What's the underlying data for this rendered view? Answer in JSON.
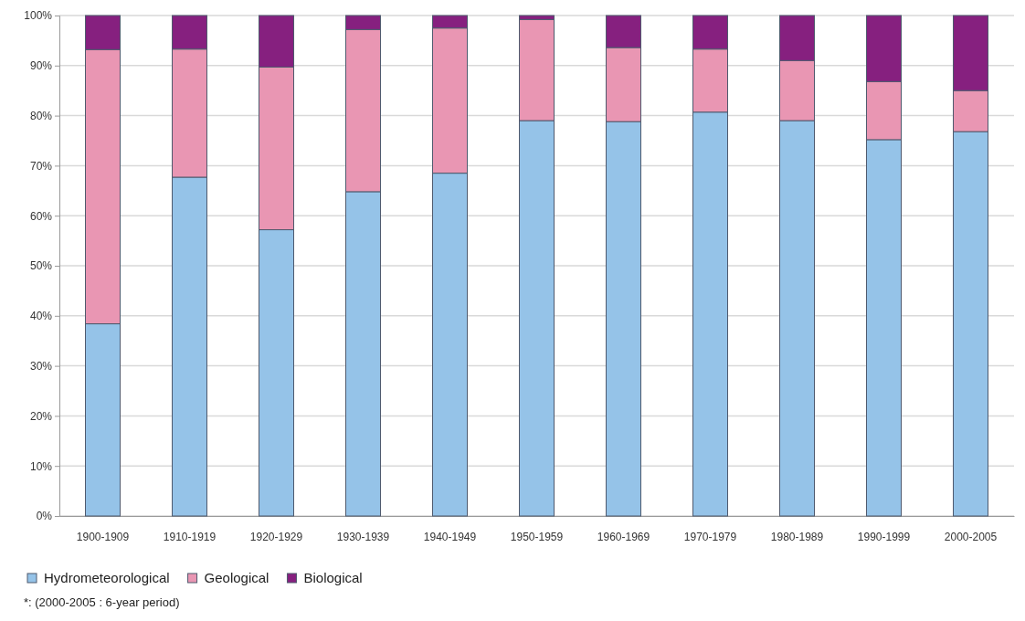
{
  "chart_data": {
    "type": "bar",
    "stacked": true,
    "categories": [
      "1900-1909",
      "1910-1919",
      "1920-1929",
      "1930-1939",
      "1940-1949",
      "1950-1959",
      "1960-1969",
      "1970-1979",
      "1980-1989",
      "1990-1999",
      "2000-2005"
    ],
    "series": [
      {
        "name": "Hydrometeorological",
        "color": "#95c3e8",
        "values": [
          38.4,
          67.7,
          57.2,
          64.8,
          68.5,
          79.0,
          78.8,
          80.7,
          79.0,
          75.2,
          76.8
        ]
      },
      {
        "name": "Geological",
        "color": "#e996b3",
        "values": [
          54.8,
          25.6,
          32.5,
          32.4,
          29.0,
          20.2,
          14.8,
          12.6,
          12.0,
          11.6,
          8.2
        ]
      },
      {
        "name": "Biological",
        "color": "#86207f",
        "values": [
          6.8,
          6.7,
          10.3,
          2.8,
          2.5,
          0.8,
          6.4,
          6.7,
          9.0,
          13.2,
          15.0
        ]
      }
    ],
    "ylim": [
      0,
      100
    ],
    "yticks": [
      {
        "value": 0,
        "label": "0%"
      },
      {
        "value": 10,
        "label": "10%"
      },
      {
        "value": 20,
        "label": "20%"
      },
      {
        "value": 30,
        "label": "30%"
      },
      {
        "value": 40,
        "label": "40%"
      },
      {
        "value": 50,
        "label": "50%"
      },
      {
        "value": 60,
        "label": "60%"
      },
      {
        "value": 70,
        "label": "70%"
      },
      {
        "value": 80,
        "label": "80%"
      },
      {
        "value": 90,
        "label": "90%"
      },
      {
        "value": 100,
        "label": "100%"
      }
    ],
    "grid": "y",
    "legend": "bottom left",
    "annotations": [
      "*: (2000-2005 : 6-year period)"
    ]
  }
}
